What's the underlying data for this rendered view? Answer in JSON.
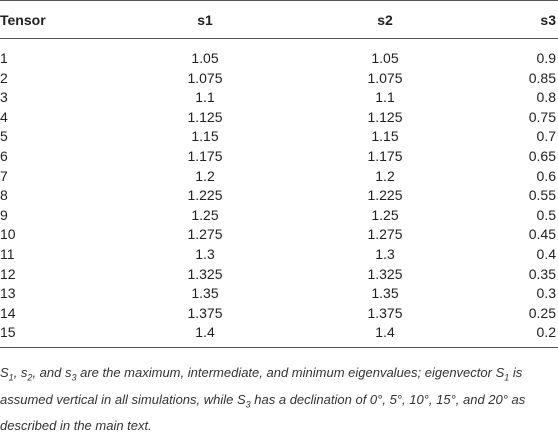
{
  "table": {
    "header": [
      "Tensor",
      "s1",
      "s2",
      "s3"
    ],
    "rows": [
      [
        1,
        1.05,
        1.05,
        0.9
      ],
      [
        2,
        1.075,
        1.075,
        0.85
      ],
      [
        3,
        1.1,
        1.1,
        0.8
      ],
      [
        4,
        1.125,
        1.125,
        0.75
      ],
      [
        5,
        1.15,
        1.15,
        0.7
      ],
      [
        6,
        1.175,
        1.175,
        0.65
      ],
      [
        7,
        1.2,
        1.2,
        0.6
      ],
      [
        8,
        1.225,
        1.225,
        0.55
      ],
      [
        9,
        1.25,
        1.25,
        0.5
      ],
      [
        10,
        1.275,
        1.275,
        0.45
      ],
      [
        11,
        1.3,
        1.3,
        0.4
      ],
      [
        12,
        1.325,
        1.325,
        0.35
      ],
      [
        13,
        1.35,
        1.35,
        0.3
      ],
      [
        14,
        1.375,
        1.375,
        0.25
      ],
      [
        15,
        1.4,
        1.4,
        0.2
      ]
    ]
  },
  "footnote": [
    "S",
    "1",
    ", s",
    "2",
    ", and s",
    "3",
    " are the maximum, intermediate, and minimum eigenvalues; eigenvector S",
    "1",
    " is assumed vertical in all simulations, while S",
    "3",
    " has a declination of 0°, 5°, 10°, 15°, and 20° as described in the main text."
  ]
}
